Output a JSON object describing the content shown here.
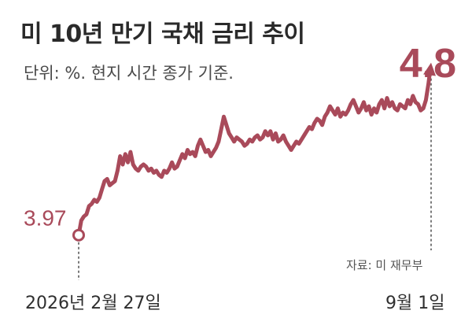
{
  "header": {
    "title": "미 10년 만기 국채 금리 추이",
    "unit_note": "단위: %.  현지 시간 종가 기준."
  },
  "footer": {
    "source": "자료: 미 재무부",
    "start_date": "2026년 2월 27일",
    "end_date": "9월 1일"
  },
  "chart_data": {
    "type": "line",
    "title": "미 10년 만기 국채 금리 추이",
    "unit": "%",
    "x_start": "2026년 2월 27일",
    "x_end": "9월 1일",
    "ylim": [
      3.7,
      4.95
    ],
    "grid": false,
    "color": "#a94a5a",
    "start_label": "3.97",
    "end_label": "4.8",
    "series": [
      {
        "values": [
          3.97,
          4.04,
          4.06,
          4.07,
          4.11,
          4.12,
          4.14,
          4.13,
          4.15,
          4.19,
          4.23,
          4.24,
          4.21,
          4.22,
          4.23,
          4.28,
          4.35,
          4.31,
          4.36,
          4.32,
          4.37,
          4.31,
          4.29,
          4.28,
          4.3,
          4.31,
          4.3,
          4.28,
          4.29,
          4.27,
          4.28,
          4.26,
          4.25,
          4.28,
          4.27,
          4.29,
          4.32,
          4.29,
          4.3,
          4.33,
          4.36,
          4.34,
          4.38,
          4.36,
          4.37,
          4.35,
          4.4,
          4.43,
          4.4,
          4.37,
          4.38,
          4.35,
          4.37,
          4.39,
          4.42,
          4.48,
          4.54,
          4.5,
          4.46,
          4.44,
          4.42,
          4.44,
          4.43,
          4.42,
          4.4,
          4.41,
          4.43,
          4.42,
          4.44,
          4.45,
          4.43,
          4.44,
          4.47,
          4.45,
          4.47,
          4.43,
          4.46,
          4.42,
          4.43,
          4.45,
          4.42,
          4.4,
          4.38,
          4.4,
          4.42,
          4.41,
          4.43,
          4.45,
          4.47,
          4.49,
          4.48,
          4.51,
          4.53,
          4.52,
          4.5,
          4.54,
          4.56,
          4.59,
          4.57,
          4.55,
          4.58,
          4.54,
          4.56,
          4.55,
          4.57,
          4.6,
          4.62,
          4.59,
          4.56,
          4.58,
          4.61,
          4.57,
          4.59,
          4.55,
          4.58,
          4.56,
          4.6,
          4.62,
          4.58,
          4.63,
          4.59,
          4.61,
          4.58,
          4.57,
          4.6,
          4.59,
          4.58,
          4.62,
          4.6,
          4.64,
          4.61,
          4.6,
          4.57,
          4.58,
          4.62,
          4.7,
          4.8
        ]
      }
    ]
  }
}
